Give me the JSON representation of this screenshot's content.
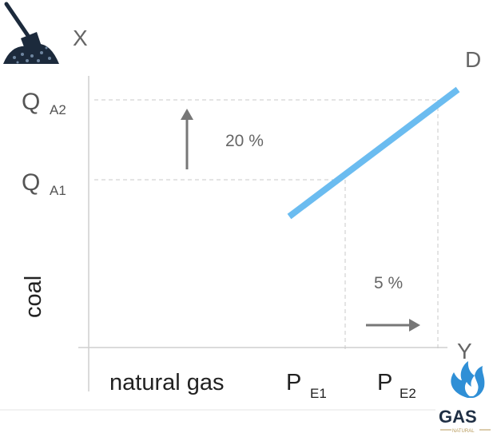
{
  "diagram": {
    "x_axis_name": "X",
    "y_axis_name": "Y",
    "curve_label": "D",
    "vertical_axis_label": "coal",
    "horizontal_axis_label": "natural gas",
    "q_a1": {
      "main": "Q",
      "sub": "A1"
    },
    "q_a2": {
      "main": "Q",
      "sub": "A2"
    },
    "p_e1": {
      "main": "P",
      "sub": "E1"
    },
    "p_e2": {
      "main": "P",
      "sub": "E2"
    },
    "vertical_change": "20 %",
    "horizontal_change": "5 %",
    "gas_logo_text": "GAS",
    "gas_logo_subtext": "NATURAL",
    "colors": {
      "demand_line": "#6bbcf0",
      "axis": "#cfcfcf",
      "guide": "#c8c8c8",
      "arrow": "#777777",
      "coal_logo": "#1c2a3c",
      "gas_logo_flame": "#2f8fd6"
    }
  }
}
